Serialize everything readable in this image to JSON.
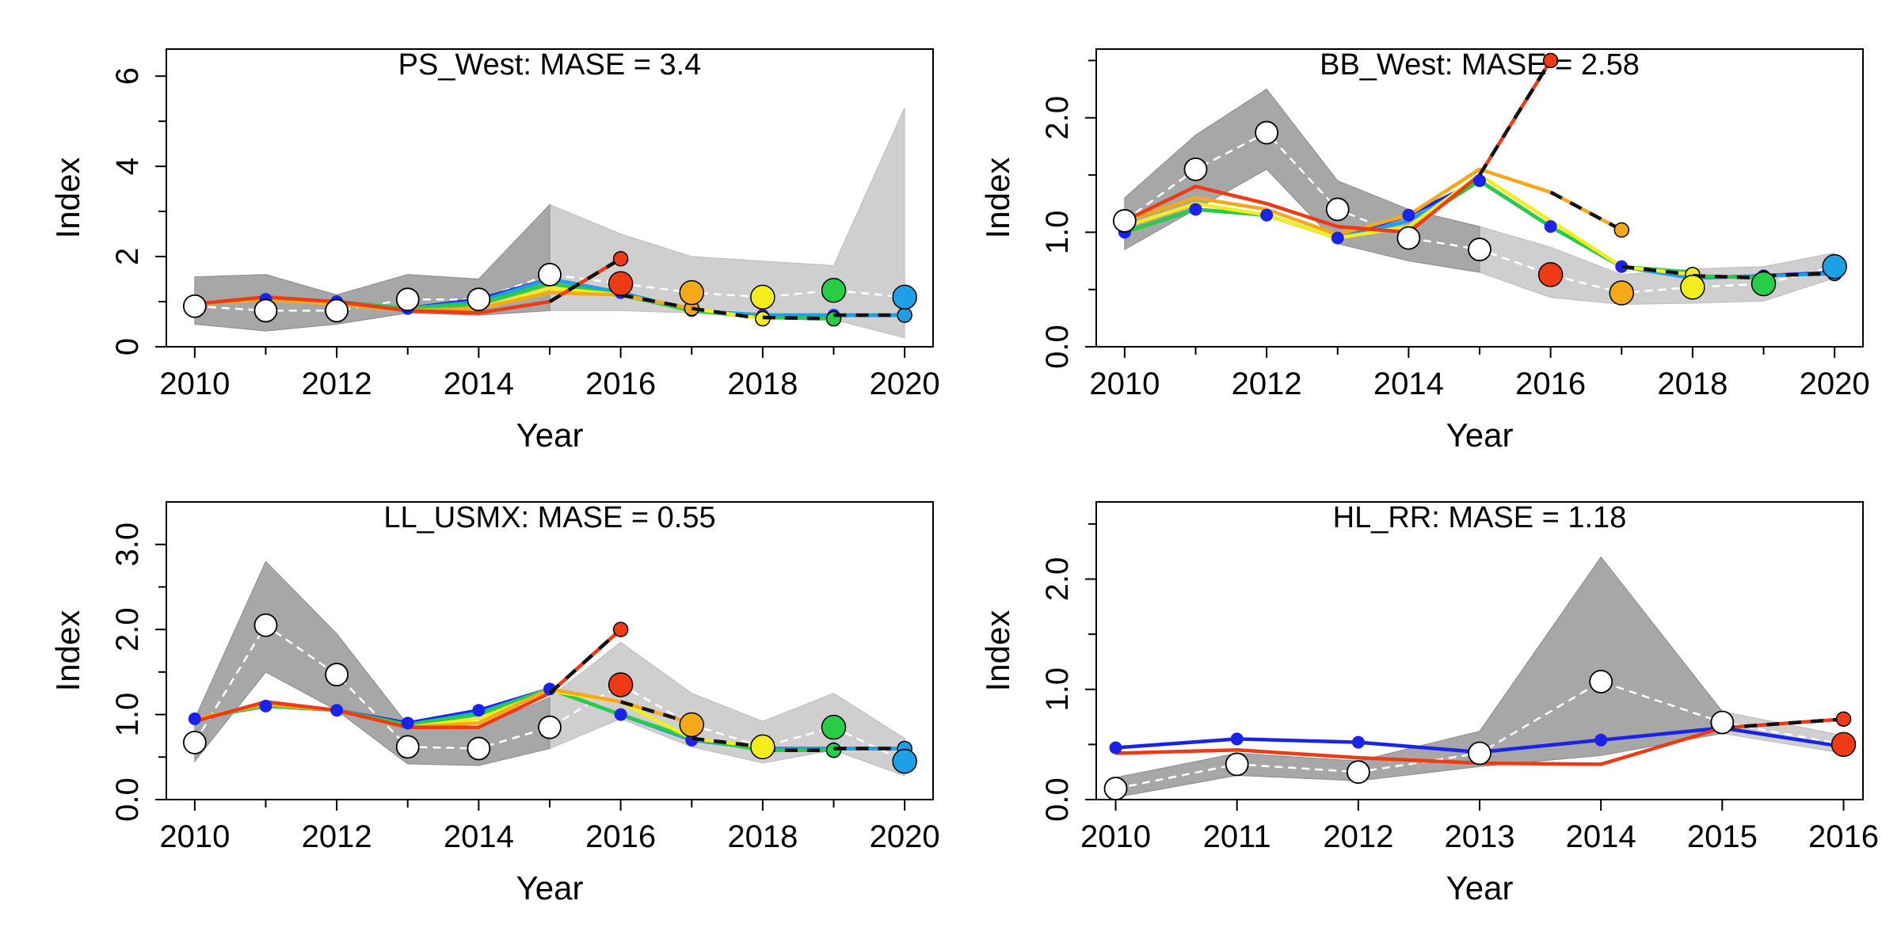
{
  "chart_data": [
    {
      "type": "line",
      "title": "PS_West: MASE = 3.4",
      "xlabel": "Year",
      "ylabel": "Index",
      "xlim": [
        2009.6,
        2020.4
      ],
      "ylim": [
        0,
        6.6
      ],
      "xticks": [
        "2010",
        "2012",
        "2014",
        "2016",
        "2018",
        "2020"
      ],
      "yticks": [
        "0",
        "2",
        "4",
        "6"
      ],
      "observed": {
        "x": [
          2010,
          2011,
          2012,
          2013,
          2014,
          2015,
          2016,
          2017,
          2018,
          2019,
          2020
        ],
        "y": [
          0.9,
          0.8,
          0.8,
          1.05,
          1.05,
          1.6,
          1.4,
          1.2,
          1.1,
          1.25,
          1.1
        ],
        "ci_lower": [
          0.5,
          0.35,
          0.5,
          0.75,
          0.7,
          0.8,
          0.8,
          0.75,
          0.65,
          0.6,
          0.2
        ],
        "ci_upper": [
          1.55,
          1.6,
          1.15,
          1.6,
          1.5,
          3.15,
          2.5,
          2.0,
          1.9,
          1.8,
          5.3
        ]
      },
      "fits": [
        {
          "color": "#1a24e8",
          "x": [
            2010,
            2011,
            2012,
            2013,
            2014,
            2015,
            2016,
            2017,
            2018,
            2019,
            2020
          ],
          "y": [
            0.95,
            1.05,
            1.0,
            0.85,
            1.05,
            1.5,
            1.2,
            0.8,
            0.7,
            0.7,
            0.7
          ]
        },
        {
          "color": "#1e9fe6",
          "x": [
            2010,
            2011,
            2012,
            2013,
            2014,
            2015,
            2016,
            2017,
            2018,
            2019
          ],
          "y": [
            0.95,
            1.05,
            1.0,
            0.85,
            1.0,
            1.5,
            1.2,
            0.8,
            0.7,
            0.7
          ]
        },
        {
          "color": "#27cd45",
          "x": [
            2010,
            2011,
            2012,
            2013,
            2014,
            2015,
            2016,
            2017,
            2018
          ],
          "y": [
            0.95,
            1.05,
            1.0,
            0.85,
            0.95,
            1.4,
            1.15,
            0.8,
            0.65
          ]
        },
        {
          "color": "#f5ec1b",
          "x": [
            2010,
            2011,
            2012,
            2013,
            2014,
            2015,
            2016,
            2017
          ],
          "y": [
            0.95,
            1.05,
            0.95,
            0.8,
            0.85,
            1.3,
            1.15,
            0.85
          ]
        },
        {
          "color": "#f5a818",
          "x": [
            2010,
            2011,
            2012,
            2013,
            2014,
            2015,
            2016
          ],
          "y": [
            0.95,
            1.05,
            0.95,
            0.8,
            0.85,
            1.2,
            1.15
          ]
        },
        {
          "color": "#ee3b16",
          "x": [
            2010,
            2011,
            2012,
            2013,
            2014,
            2015
          ],
          "y": [
            0.95,
            1.1,
            1.0,
            0.8,
            0.75,
            1.0
          ]
        }
      ],
      "predictions": [
        {
          "color": "#ee3b16",
          "x": [
            2015,
            2016
          ],
          "y": [
            1.0,
            1.95
          ]
        },
        {
          "color": "#f5a818",
          "x": [
            2016,
            2017
          ],
          "y": [
            1.15,
            0.85
          ]
        },
        {
          "color": "#f5ec1b",
          "x": [
            2017,
            2018
          ],
          "y": [
            0.85,
            0.62
          ]
        },
        {
          "color": "#27cd45",
          "x": [
            2018,
            2019
          ],
          "y": [
            0.65,
            0.62
          ]
        },
        {
          "color": "#1e9fe6",
          "x": [
            2019,
            2020
          ],
          "y": [
            0.7,
            0.7
          ]
        }
      ],
      "obs_points": [
        {
          "color": "#ee3b16",
          "x": 2016,
          "y": 1.4
        },
        {
          "color": "#f5a818",
          "x": 2017,
          "y": 1.2
        },
        {
          "color": "#f5ec1b",
          "x": 2018,
          "y": 1.1
        },
        {
          "color": "#27cd45",
          "x": 2019,
          "y": 1.25
        },
        {
          "color": "#1e9fe6",
          "x": 2020,
          "y": 1.1
        }
      ]
    },
    {
      "type": "line",
      "title": "BB_West: MASE = 2.58",
      "xlabel": "Year",
      "ylabel": "Index",
      "xlim": [
        2009.6,
        2020.4
      ],
      "ylim": [
        0,
        2.6
      ],
      "xticks": [
        "2010",
        "2012",
        "2014",
        "2016",
        "2018",
        "2020"
      ],
      "yticks": [
        "0.0",
        "1.0",
        "2.0"
      ],
      "observed": {
        "x": [
          2010,
          2011,
          2012,
          2013,
          2014,
          2015,
          2016,
          2017,
          2018,
          2019,
          2020
        ],
        "y": [
          1.1,
          1.55,
          1.87,
          1.2,
          0.95,
          0.85,
          0.63,
          0.47,
          0.52,
          0.55,
          0.7
        ],
        "ci_lower": [
          0.85,
          1.2,
          1.55,
          0.9,
          0.75,
          0.65,
          0.43,
          0.37,
          0.38,
          0.4,
          0.6
        ],
        "ci_upper": [
          1.3,
          1.85,
          2.25,
          1.45,
          1.2,
          1.05,
          0.87,
          0.63,
          0.68,
          0.7,
          0.82
        ]
      },
      "fits": [
        {
          "color": "#1a24e8",
          "x": [
            2010,
            2011,
            2012,
            2013,
            2014,
            2015,
            2016,
            2017,
            2018,
            2019,
            2020
          ],
          "y": [
            1.0,
            1.2,
            1.15,
            0.95,
            1.15,
            1.45,
            1.05,
            0.7,
            0.6,
            0.62,
            0.65
          ]
        },
        {
          "color": "#1e9fe6",
          "x": [
            2010,
            2011,
            2012,
            2013,
            2014,
            2015,
            2016,
            2017,
            2018,
            2019
          ],
          "y": [
            1.0,
            1.2,
            1.15,
            0.95,
            1.1,
            1.45,
            1.05,
            0.7,
            0.6,
            0.62
          ]
        },
        {
          "color": "#27cd45",
          "x": [
            2010,
            2011,
            2012,
            2013,
            2014,
            2015,
            2016,
            2017,
            2018
          ],
          "y": [
            1.0,
            1.2,
            1.15,
            0.95,
            1.05,
            1.45,
            1.05,
            0.7,
            0.65
          ]
        },
        {
          "color": "#f5ec1b",
          "x": [
            2010,
            2011,
            2012,
            2013,
            2014,
            2015,
            2016,
            2017
          ],
          "y": [
            1.05,
            1.25,
            1.15,
            0.95,
            1.05,
            1.5,
            1.1,
            0.7
          ]
        },
        {
          "color": "#f5a818",
          "x": [
            2010,
            2011,
            2012,
            2013,
            2014,
            2015,
            2016
          ],
          "y": [
            1.1,
            1.3,
            1.2,
            0.98,
            1.15,
            1.55,
            1.35
          ]
        },
        {
          "color": "#ee3b16",
          "x": [
            2010,
            2011,
            2012,
            2013,
            2014,
            2015
          ],
          "y": [
            1.1,
            1.4,
            1.25,
            1.05,
            1.0,
            1.5
          ]
        }
      ],
      "predictions": [
        {
          "color": "#ee3b16",
          "x": [
            2015,
            2016
          ],
          "y": [
            1.5,
            2.5
          ]
        },
        {
          "color": "#f5a818",
          "x": [
            2016,
            2017
          ],
          "y": [
            1.35,
            1.02
          ]
        },
        {
          "color": "#f5ec1b",
          "x": [
            2017,
            2018
          ],
          "y": [
            0.7,
            0.63
          ]
        },
        {
          "color": "#27cd45",
          "x": [
            2018,
            2019
          ],
          "y": [
            0.62,
            0.6
          ]
        },
        {
          "color": "#1e9fe6",
          "x": [
            2019,
            2020
          ],
          "y": [
            0.62,
            0.64
          ]
        }
      ],
      "obs_points": [
        {
          "color": "#ee3b16",
          "x": 2016,
          "y": 0.63
        },
        {
          "color": "#f5a818",
          "x": 2017,
          "y": 0.47
        },
        {
          "color": "#f5ec1b",
          "x": 2018,
          "y": 0.52
        },
        {
          "color": "#27cd45",
          "x": 2019,
          "y": 0.55
        },
        {
          "color": "#1e9fe6",
          "x": 2020,
          "y": 0.7
        }
      ]
    },
    {
      "type": "line",
      "title": "LL_USMX: MASE = 0.55",
      "xlabel": "Year",
      "ylabel": "Index",
      "xlim": [
        2009.6,
        2020.4
      ],
      "ylim": [
        0,
        3.5
      ],
      "xticks": [
        "2010",
        "2012",
        "2014",
        "2016",
        "2018",
        "2020"
      ],
      "yticks": [
        "0.0",
        "1.0",
        "2.0",
        "3.0"
      ],
      "observed": {
        "x": [
          2010,
          2011,
          2012,
          2013,
          2014,
          2015,
          2016,
          2017,
          2018,
          2019,
          2020
        ],
        "y": [
          0.67,
          2.05,
          1.47,
          0.62,
          0.6,
          0.85,
          1.35,
          0.88,
          0.62,
          0.85,
          0.45
        ],
        "ci_lower": [
          0.45,
          1.5,
          1.05,
          0.42,
          0.4,
          0.6,
          0.95,
          0.62,
          0.43,
          0.58,
          0.28
        ],
        "ci_upper": [
          0.95,
          2.8,
          1.95,
          0.88,
          0.85,
          1.2,
          1.85,
          1.25,
          0.92,
          1.25,
          0.72
        ]
      },
      "fits": [
        {
          "color": "#1a24e8",
          "x": [
            2010,
            2011,
            2012,
            2013,
            2014,
            2015,
            2016,
            2017,
            2018,
            2019,
            2020
          ],
          "y": [
            0.95,
            1.1,
            1.05,
            0.9,
            1.05,
            1.3,
            1.0,
            0.7,
            0.6,
            0.6,
            0.6
          ]
        },
        {
          "color": "#1e9fe6",
          "x": [
            2010,
            2011,
            2012,
            2013,
            2014,
            2015,
            2016,
            2017,
            2018,
            2019
          ],
          "y": [
            0.95,
            1.1,
            1.05,
            0.88,
            1.02,
            1.3,
            1.0,
            0.7,
            0.6,
            0.6
          ]
        },
        {
          "color": "#27cd45",
          "x": [
            2010,
            2011,
            2012,
            2013,
            2014,
            2015,
            2016,
            2017,
            2018
          ],
          "y": [
            0.95,
            1.1,
            1.05,
            0.88,
            1.0,
            1.3,
            1.0,
            0.72,
            0.58
          ]
        },
        {
          "color": "#f5ec1b",
          "x": [
            2010,
            2011,
            2012,
            2013,
            2014,
            2015,
            2016,
            2017
          ],
          "y": [
            0.95,
            1.12,
            1.05,
            0.85,
            0.95,
            1.28,
            1.15,
            0.72
          ]
        },
        {
          "color": "#f5a818",
          "x": [
            2010,
            2011,
            2012,
            2013,
            2014,
            2015,
            2016
          ],
          "y": [
            0.95,
            1.12,
            1.05,
            0.85,
            0.9,
            1.3,
            1.15
          ]
        },
        {
          "color": "#ee3b16",
          "x": [
            2010,
            2011,
            2012,
            2013,
            2014,
            2015
          ],
          "y": [
            0.92,
            1.15,
            1.05,
            0.85,
            0.85,
            1.25
          ]
        }
      ],
      "predictions": [
        {
          "color": "#ee3b16",
          "x": [
            2015,
            2016
          ],
          "y": [
            1.25,
            2.0
          ]
        },
        {
          "color": "#f5a818",
          "x": [
            2016,
            2017
          ],
          "y": [
            1.15,
            0.9
          ]
        },
        {
          "color": "#f5ec1b",
          "x": [
            2017,
            2018
          ],
          "y": [
            0.72,
            0.62
          ]
        },
        {
          "color": "#27cd45",
          "x": [
            2018,
            2019
          ],
          "y": [
            0.58,
            0.58
          ]
        },
        {
          "color": "#1e9fe6",
          "x": [
            2019,
            2020
          ],
          "y": [
            0.6,
            0.6
          ]
        }
      ],
      "obs_points": [
        {
          "color": "#ee3b16",
          "x": 2016,
          "y": 1.35
        },
        {
          "color": "#f5a818",
          "x": 2017,
          "y": 0.88
        },
        {
          "color": "#f5ec1b",
          "x": 2018,
          "y": 0.62
        },
        {
          "color": "#27cd45",
          "x": 2019,
          "y": 0.85
        },
        {
          "color": "#1e9fe6",
          "x": 2020,
          "y": 0.45
        }
      ]
    },
    {
      "type": "line",
      "title": "HL_RR: MASE = 1.18",
      "xlabel": "Year",
      "ylabel": "Index",
      "xlim": [
        2009.84,
        2016.16
      ],
      "ylim": [
        0,
        2.7
      ],
      "xticks": [
        "2010",
        "2011",
        "2012",
        "2013",
        "2014",
        "2015",
        "2016"
      ],
      "yticks": [
        "0.0",
        "1.0",
        "2.0"
      ],
      "observed": {
        "x": [
          2010,
          2011,
          2012,
          2013,
          2014,
          2015,
          2016
        ],
        "y": [
          0.1,
          0.32,
          0.25,
          0.42,
          1.07,
          0.7,
          0.5
        ],
        "ci_lower": [
          0.02,
          0.22,
          0.17,
          0.3,
          0.4,
          0.6,
          0.42
        ],
        "ci_upper": [
          0.2,
          0.42,
          0.35,
          0.62,
          2.2,
          0.8,
          0.58
        ]
      },
      "fits": [
        {
          "color": "#1a24e8",
          "x": [
            2010,
            2011,
            2012,
            2013,
            2014,
            2015,
            2016
          ],
          "y": [
            0.47,
            0.55,
            0.52,
            0.43,
            0.54,
            0.65,
            0.48
          ]
        },
        {
          "color": "#ee3b16",
          "x": [
            2010,
            2011,
            2012,
            2013,
            2014,
            2015
          ],
          "y": [
            0.42,
            0.45,
            0.38,
            0.33,
            0.32,
            0.65
          ]
        }
      ],
      "predictions": [
        {
          "color": "#ee3b16",
          "x": [
            2015,
            2016
          ],
          "y": [
            0.65,
            0.73
          ]
        }
      ],
      "obs_points": [
        {
          "color": "#ee3b16",
          "x": 2016,
          "y": 0.5
        }
      ]
    }
  ]
}
